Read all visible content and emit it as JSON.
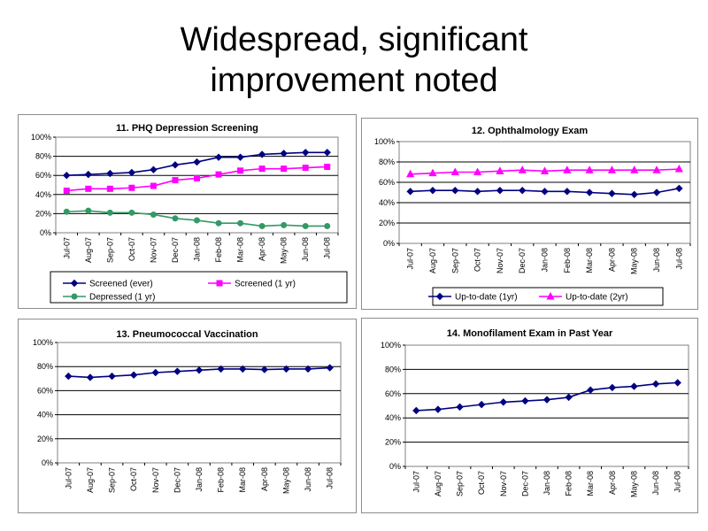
{
  "slide": {
    "title_line1": "Widespread, significant",
    "title_line2": "improvement noted"
  },
  "chart_data": [
    {
      "type": "line",
      "title": "11. PHQ Depression Screening",
      "categories": [
        "Jul-07",
        "Aug-07",
        "Sep-07",
        "Oct-07",
        "Nov-07",
        "Dec-07",
        "Jan-08",
        "Feb-08",
        "Mar-08",
        "Apr-08",
        "May-08",
        "Jun-08",
        "Jul-08"
      ],
      "ylim": [
        0,
        100
      ],
      "yticks": [
        "0%",
        "20%",
        "40%",
        "60%",
        "80%",
        "100%"
      ],
      "grid": true,
      "legend_position": "bottom",
      "series": [
        {
          "name": "Screened (ever)",
          "color": "#000080",
          "marker": "diamond",
          "values": [
            60,
            61,
            62,
            63,
            66,
            71,
            74,
            79,
            79,
            82,
            83,
            84,
            84
          ]
        },
        {
          "name": "Screened (1 yr)",
          "color": "#ff00ff",
          "marker": "square",
          "values": [
            44,
            46,
            46,
            47,
            49,
            55,
            57,
            61,
            65,
            67,
            67,
            68,
            69
          ]
        },
        {
          "name": "Depressed (1 yr)",
          "color": "#339966",
          "marker": "circle",
          "values": [
            22,
            23,
            21,
            21,
            19,
            15,
            13,
            10,
            10,
            7,
            8,
            7,
            7
          ]
        }
      ]
    },
    {
      "type": "line",
      "title": "12. Ophthalmology Exam",
      "categories": [
        "Jul-07",
        "Aug-07",
        "Sep-07",
        "Oct-07",
        "Nov-07",
        "Dec-07",
        "Jan-08",
        "Feb-08",
        "Mar-08",
        "Apr-08",
        "May-08",
        "Jun-08",
        "Jul-08"
      ],
      "ylim": [
        0,
        100
      ],
      "yticks": [
        "0%",
        "20%",
        "40%",
        "60%",
        "80%",
        "100%"
      ],
      "grid": true,
      "legend_position": "bottom",
      "series": [
        {
          "name": "Up-to-date (1yr)",
          "color": "#000080",
          "marker": "diamond",
          "values": [
            51,
            52,
            52,
            51,
            52,
            52,
            51,
            51,
            50,
            49,
            48,
            50,
            54
          ]
        },
        {
          "name": "Up-to-date (2yr)",
          "color": "#ff00ff",
          "marker": "triangle",
          "values": [
            68,
            69,
            70,
            70,
            71,
            72,
            71,
            72,
            72,
            72,
            72,
            72,
            73
          ]
        }
      ]
    },
    {
      "type": "line",
      "title": "13. Pneumococcal Vaccination",
      "categories": [
        "Jul-07",
        "Aug-07",
        "Sep-07",
        "Oct-07",
        "Nov-07",
        "Dec-07",
        "Jan-08",
        "Feb-08",
        "Mar-08",
        "Apr-08",
        "May-08",
        "Jun-08",
        "Jul-08"
      ],
      "ylim": [
        0,
        100
      ],
      "yticks": [
        "0%",
        "20%",
        "40%",
        "60%",
        "80%",
        "100%"
      ],
      "grid": true,
      "legend_position": "none",
      "series": [
        {
          "name": "",
          "color": "#000080",
          "marker": "diamond",
          "values": [
            72,
            71,
            72,
            73,
            75,
            76,
            77,
            78,
            78,
            77.5,
            78,
            78,
            79
          ]
        }
      ]
    },
    {
      "type": "line",
      "title": "14. Monofilament Exam in Past Year",
      "categories": [
        "Jul-07",
        "Aug-07",
        "Sep-07",
        "Oct-07",
        "Nov-07",
        "Dec-07",
        "Jan-08",
        "Feb-08",
        "Mar-08",
        "Apr-08",
        "May-08",
        "Jun-08",
        "Jul-08"
      ],
      "ylim": [
        0,
        100
      ],
      "yticks": [
        "0%",
        "20%",
        "40%",
        "60%",
        "80%",
        "100%"
      ],
      "grid": true,
      "legend_position": "none",
      "series": [
        {
          "name": "",
          "color": "#000080",
          "marker": "diamond",
          "values": [
            46,
            47,
            49,
            51,
            53,
            54,
            55,
            57,
            63,
            65,
            66,
            68,
            69
          ]
        }
      ]
    }
  ]
}
